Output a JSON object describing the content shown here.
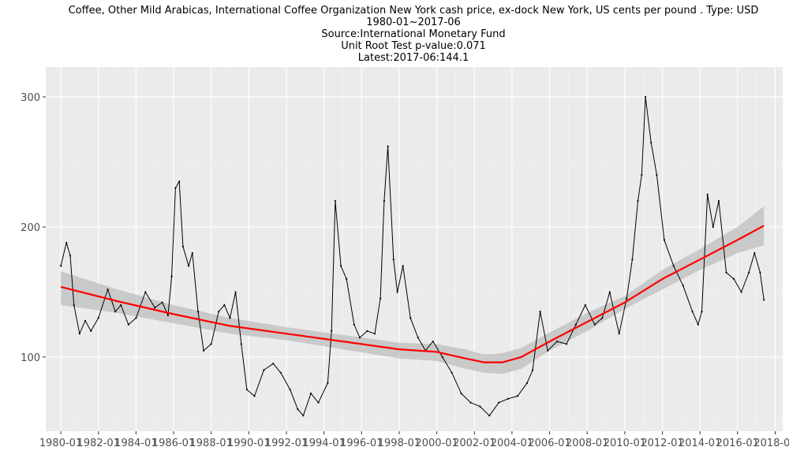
{
  "chart_data": {
    "type": "line",
    "title": "Coffee, Other Mild Arabicas, International Coffee Organization New York cash price, ex-dock New York, US cents per pound . Type: USD",
    "subtitle": [
      "1980-01~2017-06",
      "Source:International Monetary Fund",
      "Unit Root Test p-value:0.071",
      "Latest:2017-06:144.1"
    ],
    "xlabel": "",
    "ylabel": "",
    "x_range": [
      1979.2,
      2018.4
    ],
    "y_range": [
      43,
      323
    ],
    "y_ticks": [
      100,
      200,
      300
    ],
    "y_tick_labels": [
      "100",
      "200",
      "300"
    ],
    "x_ticks": [
      1980,
      1982,
      1984,
      1986,
      1988,
      1990,
      1992,
      1994,
      1996,
      1998,
      2000,
      2002,
      2004,
      2006,
      2008,
      2010,
      2012,
      2014,
      2016,
      2018
    ],
    "x_tick_labels": [
      "1980-01",
      "1982-01",
      "1984-01",
      "1986-01",
      "1988-01",
      "1990-01",
      "1992-01",
      "1994-01",
      "1996-01",
      "1998-01",
      "2000-01",
      "2002-01",
      "2004-01",
      "2006-01",
      "2008-01",
      "2010-01",
      "2012-01",
      "2014-01",
      "2016-01",
      "2018-01"
    ],
    "grid": true,
    "legend": "none",
    "colors": {
      "panel": "#ebebeb",
      "grid_major": "#ffffff",
      "grid_minor": "#f5f5f5",
      "price_line": "#000000",
      "trend_line": "#ff0000",
      "confidence_band": "#bebebe"
    },
    "series": [
      {
        "kind": "price",
        "x": [
          1980.0,
          1980.3,
          1980.5,
          1980.7,
          1981.0,
          1981.3,
          1981.6,
          1982.0,
          1982.5,
          1982.9,
          1983.2,
          1983.6,
          1984.0,
          1984.5,
          1985.0,
          1985.4,
          1985.7,
          1985.9,
          1986.1,
          1986.3,
          1986.5,
          1986.8,
          1987.0,
          1987.3,
          1987.6,
          1988.0,
          1988.4,
          1988.7,
          1989.0,
          1989.3,
          1989.6,
          1989.9,
          1990.3,
          1990.8,
          1991.3,
          1991.7,
          1992.2,
          1992.6,
          1992.9,
          1993.3,
          1993.7,
          1994.2,
          1994.4,
          1994.6,
          1994.9,
          1995.2,
          1995.6,
          1995.9,
          1996.3,
          1996.7,
          1997.0,
          1997.2,
          1997.4,
          1997.7,
          1997.9,
          1998.2,
          1998.6,
          1999.0,
          1999.4,
          1999.8,
          2000.3,
          2000.8,
          2001.3,
          2001.8,
          2002.3,
          2002.8,
          2003.3,
          2003.8,
          2004.3,
          2004.8,
          2005.1,
          2005.5,
          2005.9,
          2006.4,
          2006.9,
          2007.4,
          2007.9,
          2008.4,
          2008.8,
          2009.2,
          2009.7,
          2010.1,
          2010.4,
          2010.7,
          2010.9,
          2011.1,
          2011.4,
          2011.7,
          2012.1,
          2012.6,
          2013.1,
          2013.6,
          2013.9,
          2014.1,
          2014.4,
          2014.7,
          2015.0,
          2015.4,
          2015.8,
          2016.2,
          2016.6,
          2016.9,
          2017.2,
          2017.4
        ],
        "y": [
          170,
          188,
          178,
          140,
          118,
          128,
          120,
          130,
          152,
          135,
          140,
          125,
          130,
          150,
          138,
          142,
          132,
          162,
          230,
          235,
          185,
          170,
          180,
          135,
          105,
          110,
          135,
          140,
          130,
          150,
          110,
          75,
          70,
          90,
          95,
          88,
          75,
          60,
          55,
          72,
          65,
          80,
          120,
          220,
          170,
          160,
          125,
          115,
          120,
          118,
          145,
          220,
          262,
          175,
          150,
          170,
          130,
          115,
          105,
          112,
          100,
          88,
          72,
          65,
          62,
          55,
          65,
          68,
          70,
          80,
          90,
          135,
          105,
          112,
          110,
          125,
          140,
          125,
          130,
          150,
          118,
          145,
          175,
          220,
          240,
          300,
          265,
          240,
          190,
          170,
          155,
          135,
          125,
          135,
          225,
          200,
          220,
          165,
          160,
          150,
          165,
          180,
          165,
          144
        ]
      },
      {
        "kind": "trend",
        "x": [
          1980,
          1983,
          1986,
          1989,
          1992,
          1995,
          1998,
          2000,
          2001.5,
          2002.5,
          2003.5,
          2004.5,
          2006,
          2008,
          2010,
          2012,
          2014,
          2016,
          2017.4
        ],
        "y": [
          154,
          143,
          133,
          124,
          118,
          112,
          106,
          104,
          99,
          96,
          96,
          100,
          112,
          127,
          142,
          160,
          175,
          190,
          201
        ],
        "band_low": [
          140,
          134,
          126,
          118,
          113,
          106,
          99,
          97,
          91,
          88,
          87,
          91,
          105,
          120,
          137,
          152,
          167,
          180,
          186
        ],
        "band_high": [
          166,
          152,
          140,
          130,
          123,
          117,
          111,
          110,
          106,
          102,
          103,
          107,
          119,
          134,
          147,
          167,
          183,
          200,
          216
        ]
      }
    ]
  }
}
